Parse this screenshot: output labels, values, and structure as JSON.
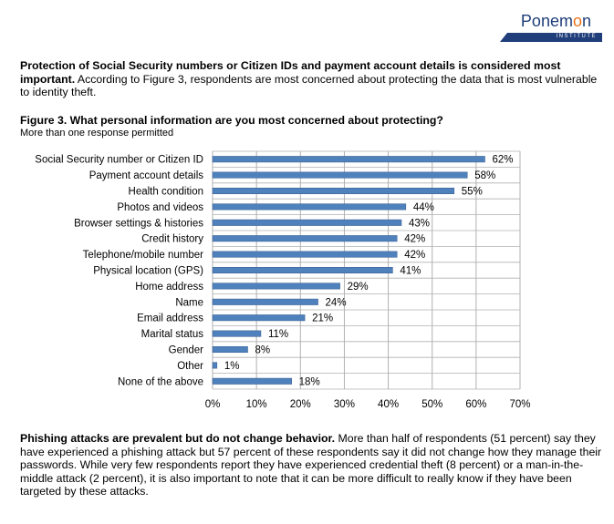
{
  "logo": {
    "name": "Ponemon",
    "sub": "INSTITUTE"
  },
  "intro": {
    "bold": "Protection of Social Security numbers or Citizen IDs and payment account details is considered most important.",
    "text": " According to Figure 3, respondents are most concerned about protecting the data that is most vulnerable to identity theft."
  },
  "figure": {
    "title": "Figure 3. What personal information are you most concerned about protecting?",
    "subtitle": "More than one response permitted"
  },
  "chart_data": {
    "type": "bar",
    "orientation": "horizontal",
    "categories": [
      "Social Security number or Citizen ID",
      "Payment account details",
      "Health condition",
      "Photos and videos",
      "Browser settings & histories",
      "Credit history",
      "Telephone/mobile number",
      "Physical location (GPS)",
      "Home address",
      "Name",
      "Email address",
      "Marital status",
      "Gender",
      "Other",
      "None of the above"
    ],
    "values": [
      62,
      58,
      55,
      44,
      43,
      42,
      42,
      41,
      29,
      24,
      21,
      11,
      8,
      1,
      18
    ],
    "value_labels": [
      "62%",
      "58%",
      "55%",
      "44%",
      "43%",
      "42%",
      "42%",
      "41%",
      "29%",
      "24%",
      "21%",
      "11%",
      "8%",
      "1%",
      "18%"
    ],
    "xticks": [
      "0%",
      "10%",
      "20%",
      "30%",
      "40%",
      "50%",
      "60%",
      "70%"
    ],
    "xlim": [
      0,
      70
    ],
    "grid": true,
    "bar_color": "#4f81bd"
  },
  "outro": {
    "bold": "Phishing attacks are prevalent but do not change behavior.",
    "text": " More than half of respondents (51 percent) say they have experienced a phishing attack but 57 percent of these respondents say it did not change how they manage their passwords. While very few respondents report they have experienced credential theft (8 percent) or a man-in-the-middle attack (2 percent), it is also important to note that it can be more difficult to really know if they have been targeted by these attacks."
  }
}
